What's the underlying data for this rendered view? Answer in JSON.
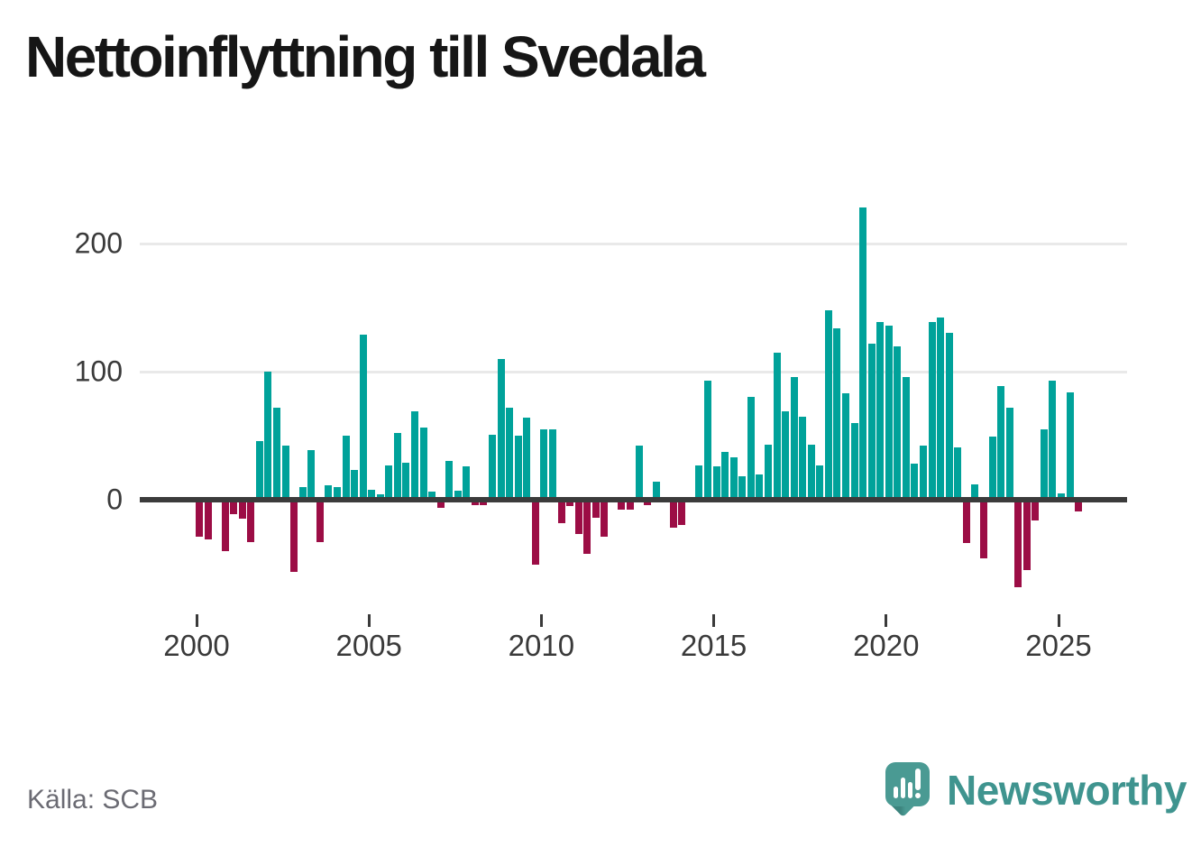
{
  "title": "Nettoinflyttning till Svedala",
  "source": "Källa: SCB",
  "logo": {
    "text": "Newsworthy",
    "icon": "speech-bubble-with-bar-chart-and-exclamation"
  },
  "colors": {
    "positive": "#00a29a",
    "negative": "#9c0d45",
    "brand_teal": "#3f948f",
    "axis": "#3b3b3b",
    "grid": "#e9e9e9"
  },
  "chart_data": {
    "type": "bar",
    "title": "Nettoinflyttning till Svedala",
    "xlabel": "",
    "ylabel": "",
    "x_frequency": "quarterly",
    "x_start": "2000-Q1",
    "x_end": "2025-Q3",
    "grid": "horizontal",
    "ylim": [
      -75,
      240
    ],
    "legend": "none",
    "positive_color": "#00a29a",
    "negative_color": "#9c0d45",
    "yticks": [
      {
        "value": 0,
        "label": "0"
      },
      {
        "value": 100,
        "label": "100"
      },
      {
        "value": 200,
        "label": "200"
      }
    ],
    "xticks": [
      {
        "year": 2000,
        "label": "2000"
      },
      {
        "year": 2005,
        "label": "2005"
      },
      {
        "year": 2010,
        "label": "2010"
      },
      {
        "year": 2015,
        "label": "2015"
      },
      {
        "year": 2020,
        "label": "2020"
      },
      {
        "year": 2025,
        "label": "2025"
      }
    ],
    "quarters": [
      "2000-Q1",
      "2000-Q2",
      "2000-Q3",
      "2000-Q4",
      "2001-Q1",
      "2001-Q2",
      "2001-Q3",
      "2001-Q4",
      "2002-Q1",
      "2002-Q2",
      "2002-Q3",
      "2002-Q4",
      "2003-Q1",
      "2003-Q2",
      "2003-Q3",
      "2003-Q4",
      "2004-Q1",
      "2004-Q2",
      "2004-Q3",
      "2004-Q4",
      "2005-Q1",
      "2005-Q2",
      "2005-Q3",
      "2005-Q4",
      "2006-Q1",
      "2006-Q2",
      "2006-Q3",
      "2006-Q4",
      "2007-Q1",
      "2007-Q2",
      "2007-Q3",
      "2007-Q4",
      "2008-Q1",
      "2008-Q2",
      "2008-Q3",
      "2008-Q4",
      "2009-Q1",
      "2009-Q2",
      "2009-Q3",
      "2009-Q4",
      "2010-Q1",
      "2010-Q2",
      "2010-Q3",
      "2010-Q4",
      "2011-Q1",
      "2011-Q2",
      "2011-Q3",
      "2011-Q4",
      "2012-Q1",
      "2012-Q2",
      "2012-Q3",
      "2012-Q4",
      "2013-Q1",
      "2013-Q2",
      "2013-Q3",
      "2013-Q4",
      "2014-Q1",
      "2014-Q2",
      "2014-Q3",
      "2014-Q4",
      "2015-Q1",
      "2015-Q2",
      "2015-Q3",
      "2015-Q4",
      "2016-Q1",
      "2016-Q2",
      "2016-Q3",
      "2016-Q4",
      "2017-Q1",
      "2017-Q2",
      "2017-Q3",
      "2017-Q4",
      "2018-Q1",
      "2018-Q2",
      "2018-Q3",
      "2018-Q4",
      "2019-Q1",
      "2019-Q2",
      "2019-Q3",
      "2019-Q4",
      "2020-Q1",
      "2020-Q2",
      "2020-Q3",
      "2020-Q4",
      "2021-Q1",
      "2021-Q2",
      "2021-Q3",
      "2021-Q4",
      "2022-Q1",
      "2022-Q2",
      "2022-Q3",
      "2022-Q4",
      "2023-Q1",
      "2023-Q2",
      "2023-Q3",
      "2023-Q4",
      "2024-Q1",
      "2024-Q2",
      "2024-Q3",
      "2024-Q4",
      "2025-Q1",
      "2025-Q2",
      "2025-Q3"
    ],
    "values": [
      -29,
      -31,
      0,
      -40,
      -11,
      -15,
      -33,
      46,
      100,
      72,
      42,
      -56,
      10,
      39,
      -33,
      11,
      10,
      50,
      23,
      129,
      8,
      4,
      27,
      52,
      29,
      69,
      56,
      6,
      -6,
      30,
      7,
      26,
      -4,
      -4,
      51,
      110,
      72,
      50,
      64,
      -51,
      55,
      55,
      -18,
      -5,
      -27,
      -42,
      -14,
      -29,
      2,
      -8,
      -8,
      42,
      -4,
      14,
      0,
      -22,
      -20,
      0,
      27,
      93,
      26,
      37,
      33,
      18,
      80,
      20,
      43,
      115,
      69,
      96,
      65,
      43,
      27,
      148,
      134,
      83,
      60,
      228,
      122,
      139,
      136,
      120,
      96,
      28,
      42,
      139,
      142,
      130,
      41,
      -34,
      12,
      -46,
      49,
      89,
      72,
      -68,
      -55,
      -16,
      55,
      93,
      5,
      84,
      -9
    ]
  }
}
